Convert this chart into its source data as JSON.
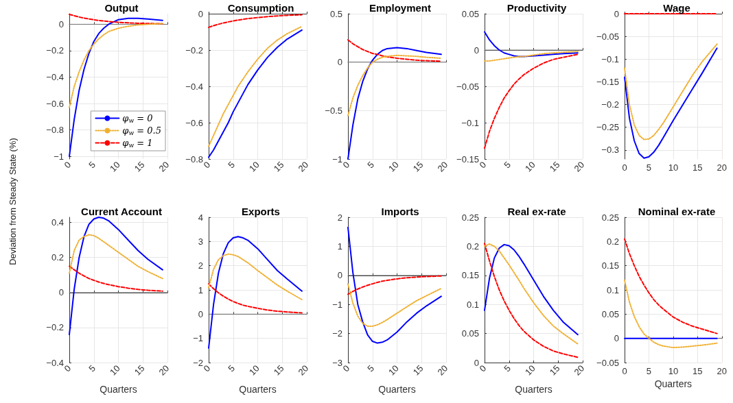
{
  "chart_data": [
    {
      "type": "line",
      "title": "Output",
      "ylabel": "Deviation from Steady State (%)",
      "x": [
        0,
        1,
        2,
        3,
        4,
        5,
        6,
        7,
        8,
        10,
        12,
        14,
        16,
        19
      ],
      "xlim": [
        0,
        20
      ],
      "xticks": [
        0,
        5,
        10,
        15,
        20
      ],
      "ylim": [
        -1.02,
        0.08
      ],
      "yticks": [
        -1,
        -0.8,
        -0.6,
        -0.4,
        -0.2,
        0
      ],
      "grid": true,
      "legend": "bottom right",
      "ref_lines": [
        {
          "axis": "y",
          "value": 0,
          "color": "#808080"
        }
      ],
      "series": [
        {
          "name": "φ$_{w}$ = 0",
          "color": "#0000ff",
          "line_style": "solid",
          "values": [
            -1.0,
            -0.72,
            -0.5,
            -0.34,
            -0.22,
            -0.13,
            -0.07,
            -0.03,
            0.0,
            0.035,
            0.045,
            0.045,
            0.04,
            0.03
          ]
        },
        {
          "name": "φ$_{w}$ = 0.5",
          "color": "#f0b030",
          "line_style": "dotted",
          "values": [
            -0.63,
            -0.47,
            -0.36,
            -0.27,
            -0.2,
            -0.15,
            -0.11,
            -0.08,
            -0.055,
            -0.03,
            -0.015,
            -0.005,
            0.0,
            0.005
          ]
        },
        {
          "name": "φ$_{w}$ = 1",
          "color": "#ff0000",
          "line_style": "dashed",
          "values": [
            0.075,
            0.065,
            0.055,
            0.047,
            0.04,
            0.034,
            0.029,
            0.025,
            0.021,
            0.015,
            0.011,
            0.008,
            0.006,
            0.004
          ]
        }
      ]
    },
    {
      "type": "line",
      "title": "Consumption",
      "x": [
        0,
        1,
        2,
        3,
        4,
        5,
        6,
        7,
        8,
        10,
        12,
        14,
        16,
        19
      ],
      "xlim": [
        0,
        20
      ],
      "xticks": [
        0,
        5,
        10,
        15,
        20
      ],
      "ylim": [
        -0.8,
        0
      ],
      "yticks": [
        -0.8,
        -0.6,
        -0.4,
        -0.2,
        0
      ],
      "grid": true,
      "series": [
        {
          "color": "#0000ff",
          "line_style": "solid",
          "values": [
            -0.79,
            -0.75,
            -0.7,
            -0.65,
            -0.6,
            -0.54,
            -0.49,
            -0.44,
            -0.39,
            -0.31,
            -0.24,
            -0.185,
            -0.14,
            -0.09
          ]
        },
        {
          "color": "#f0b030",
          "line_style": "dotted",
          "values": [
            -0.73,
            -0.67,
            -0.61,
            -0.55,
            -0.5,
            -0.45,
            -0.4,
            -0.36,
            -0.32,
            -0.25,
            -0.19,
            -0.145,
            -0.11,
            -0.07
          ]
        },
        {
          "color": "#ff0000",
          "line_style": "dashed",
          "values": [
            -0.075,
            -0.066,
            -0.058,
            -0.051,
            -0.045,
            -0.04,
            -0.035,
            -0.031,
            -0.027,
            -0.021,
            -0.016,
            -0.012,
            -0.009,
            -0.006
          ]
        }
      ]
    },
    {
      "type": "line",
      "title": "Employment",
      "x": [
        0,
        1,
        2,
        3,
        4,
        5,
        6,
        7,
        8,
        10,
        12,
        14,
        16,
        19
      ],
      "xlim": [
        0,
        20
      ],
      "xticks": [
        0,
        5,
        10,
        15,
        20
      ],
      "ylim": [
        -1,
        0.5
      ],
      "yticks": [
        -1,
        -0.5,
        0,
        0.5
      ],
      "grid": true,
      "ref_lines": [
        {
          "axis": "y",
          "value": 0,
          "color": "#808080"
        }
      ],
      "series": [
        {
          "color": "#0000ff",
          "line_style": "solid",
          "values": [
            -1.0,
            -0.65,
            -0.38,
            -0.2,
            -0.07,
            0.02,
            0.08,
            0.12,
            0.14,
            0.15,
            0.14,
            0.12,
            0.1,
            0.08
          ]
        },
        {
          "color": "#f0b030",
          "line_style": "dotted",
          "values": [
            -0.55,
            -0.37,
            -0.24,
            -0.14,
            -0.06,
            0.0,
            0.03,
            0.05,
            0.06,
            0.07,
            0.065,
            0.06,
            0.05,
            0.04
          ]
        },
        {
          "color": "#ff0000",
          "line_style": "dashed",
          "values": [
            0.23,
            0.19,
            0.16,
            0.13,
            0.11,
            0.09,
            0.08,
            0.065,
            0.055,
            0.04,
            0.03,
            0.02,
            0.015,
            0.01
          ]
        }
      ]
    },
    {
      "type": "line",
      "title": "Productivity",
      "x": [
        0,
        1,
        2,
        3,
        4,
        5,
        6,
        7,
        8,
        10,
        12,
        14,
        16,
        19
      ],
      "xlim": [
        0,
        20
      ],
      "xticks": [
        0,
        5,
        10,
        15,
        20
      ],
      "ylim": [
        -0.15,
        0.05
      ],
      "yticks": [
        -0.15,
        -0.1,
        -0.05,
        0,
        0.05
      ],
      "grid": true,
      "ref_lines": [
        {
          "axis": "y",
          "value": 0,
          "color": "#808080"
        }
      ],
      "series": [
        {
          "color": "#0000ff",
          "line_style": "solid",
          "values": [
            0.025,
            0.014,
            0.006,
            0.0,
            -0.004,
            -0.006,
            -0.008,
            -0.009,
            -0.009,
            -0.008,
            -0.007,
            -0.006,
            -0.005,
            -0.004
          ]
        },
        {
          "color": "#f0b030",
          "line_style": "dotted",
          "values": [
            -0.015,
            -0.015,
            -0.014,
            -0.013,
            -0.012,
            -0.011,
            -0.01,
            -0.009,
            -0.009,
            -0.007,
            -0.005,
            -0.004,
            -0.003,
            -0.002
          ]
        },
        {
          "color": "#ff0000",
          "line_style": "dashed",
          "values": [
            -0.135,
            -0.112,
            -0.094,
            -0.079,
            -0.066,
            -0.056,
            -0.047,
            -0.04,
            -0.034,
            -0.025,
            -0.018,
            -0.013,
            -0.01,
            -0.006
          ]
        }
      ]
    },
    {
      "type": "line",
      "title": "Wage",
      "x": [
        0,
        1,
        2,
        3,
        4,
        5,
        6,
        7,
        8,
        10,
        12,
        14,
        16,
        19
      ],
      "xlim": [
        0,
        20
      ],
      "xticks": [
        0,
        5,
        10,
        15,
        20
      ],
      "ylim": [
        -0.32,
        0
      ],
      "yticks": [
        -0.3,
        -0.25,
        -0.2,
        -0.15,
        -0.1,
        -0.05,
        0
      ],
      "grid": true,
      "series": [
        {
          "color": "#0000ff",
          "line_style": "solid",
          "values": [
            -0.14,
            -0.23,
            -0.28,
            -0.308,
            -0.318,
            -0.315,
            -0.305,
            -0.29,
            -0.272,
            -0.235,
            -0.2,
            -0.165,
            -0.13,
            -0.076
          ]
        },
        {
          "color": "#f0b030",
          "line_style": "dotted",
          "values": [
            -0.12,
            -0.2,
            -0.245,
            -0.268,
            -0.277,
            -0.276,
            -0.268,
            -0.255,
            -0.24,
            -0.205,
            -0.17,
            -0.135,
            -0.105,
            -0.067
          ]
        },
        {
          "color": "#ff0000",
          "line_style": "dashed",
          "values": [
            0,
            0,
            0,
            0,
            0,
            0,
            0,
            0,
            0,
            0,
            0,
            0,
            0,
            0
          ]
        }
      ]
    },
    {
      "type": "line",
      "title": "Current Account",
      "xlabel": "Quarters",
      "x": [
        0,
        1,
        2,
        3,
        4,
        5,
        6,
        7,
        8,
        10,
        12,
        14,
        16,
        19
      ],
      "xlim": [
        0,
        20
      ],
      "xticks": [
        0,
        5,
        10,
        15,
        20
      ],
      "ylim": [
        -0.4,
        0.43
      ],
      "yticks": [
        -0.4,
        -0.2,
        0,
        0.2,
        0.4
      ],
      "grid": true,
      "ref_lines": [
        {
          "axis": "y",
          "value": 0,
          "color": "#808080"
        }
      ],
      "series": [
        {
          "color": "#0000ff",
          "line_style": "solid",
          "values": [
            -0.24,
            0.02,
            0.2,
            0.32,
            0.39,
            0.42,
            0.43,
            0.425,
            0.41,
            0.36,
            0.3,
            0.24,
            0.19,
            0.13
          ]
        },
        {
          "color": "#f0b030",
          "line_style": "dotted",
          "values": [
            0.11,
            0.24,
            0.3,
            0.32,
            0.33,
            0.325,
            0.31,
            0.29,
            0.27,
            0.23,
            0.19,
            0.15,
            0.12,
            0.08
          ]
        },
        {
          "color": "#ff0000",
          "line_style": "dashed",
          "values": [
            0.15,
            0.13,
            0.11,
            0.095,
            0.08,
            0.07,
            0.06,
            0.052,
            0.045,
            0.034,
            0.025,
            0.018,
            0.013,
            0.008
          ]
        }
      ]
    },
    {
      "type": "line",
      "title": "Exports",
      "xlabel": "Quarters",
      "x": [
        0,
        1,
        2,
        3,
        4,
        5,
        6,
        7,
        8,
        10,
        12,
        14,
        16,
        19
      ],
      "xlim": [
        0,
        20
      ],
      "xticks": [
        0,
        5,
        10,
        15,
        20
      ],
      "ylim": [
        -2,
        4
      ],
      "yticks": [
        -2,
        -1,
        0,
        1,
        2,
        3,
        4
      ],
      "grid": true,
      "ref_lines": [
        {
          "axis": "y",
          "value": 0,
          "color": "#808080"
        }
      ],
      "series": [
        {
          "color": "#0000ff",
          "line_style": "solid",
          "values": [
            -1.4,
            0.4,
            1.7,
            2.5,
            2.95,
            3.15,
            3.2,
            3.15,
            3.05,
            2.7,
            2.25,
            1.8,
            1.45,
            0.95
          ]
        },
        {
          "color": "#f0b030",
          "line_style": "dotted",
          "values": [
            1.1,
            1.85,
            2.25,
            2.42,
            2.48,
            2.45,
            2.38,
            2.25,
            2.12,
            1.8,
            1.5,
            1.2,
            0.95,
            0.6
          ]
        },
        {
          "color": "#ff0000",
          "line_style": "dashed",
          "values": [
            1.25,
            1.05,
            0.88,
            0.74,
            0.62,
            0.52,
            0.44,
            0.37,
            0.32,
            0.24,
            0.17,
            0.12,
            0.09,
            0.05
          ]
        }
      ]
    },
    {
      "type": "line",
      "title": "Imports",
      "xlabel": "Quarters",
      "x": [
        0,
        1,
        2,
        3,
        4,
        5,
        6,
        7,
        8,
        10,
        12,
        14,
        16,
        19
      ],
      "xlim": [
        0,
        20
      ],
      "xticks": [
        0,
        5,
        10,
        15,
        20
      ],
      "ylim": [
        -3,
        2
      ],
      "yticks": [
        -3,
        -2,
        -1,
        0,
        1,
        2
      ],
      "grid": true,
      "ref_lines": [
        {
          "axis": "y",
          "value": 0,
          "color": "#808080"
        }
      ],
      "series": [
        {
          "color": "#0000ff",
          "line_style": "solid",
          "values": [
            1.65,
            0.1,
            -1.0,
            -1.6,
            -2.05,
            -2.27,
            -2.33,
            -2.3,
            -2.22,
            -1.95,
            -1.6,
            -1.3,
            -1.05,
            -0.72
          ]
        },
        {
          "color": "#f0b030",
          "line_style": "dotted",
          "values": [
            -0.3,
            -0.95,
            -1.4,
            -1.65,
            -1.75,
            -1.75,
            -1.7,
            -1.62,
            -1.52,
            -1.3,
            -1.08,
            -0.87,
            -0.7,
            -0.45
          ]
        },
        {
          "color": "#ff0000",
          "line_style": "dashed",
          "values": [
            -0.65,
            -0.55,
            -0.47,
            -0.4,
            -0.34,
            -0.29,
            -0.24,
            -0.2,
            -0.17,
            -0.12,
            -0.08,
            -0.06,
            -0.04,
            -0.02
          ]
        }
      ]
    },
    {
      "type": "line",
      "title": "Real ex-rate",
      "xlabel": "Quarters",
      "x": [
        0,
        1,
        2,
        3,
        4,
        5,
        6,
        7,
        8,
        10,
        12,
        14,
        16,
        19
      ],
      "xlim": [
        0,
        20
      ],
      "xticks": [
        0,
        5,
        10,
        15,
        20
      ],
      "ylim": [
        0,
        0.25
      ],
      "yticks": [
        0,
        0.05,
        0.1,
        0.15,
        0.2,
        0.25
      ],
      "grid": true,
      "series": [
        {
          "color": "#0000ff",
          "line_style": "solid",
          "values": [
            0.09,
            0.145,
            0.18,
            0.197,
            0.203,
            0.201,
            0.194,
            0.183,
            0.17,
            0.142,
            0.114,
            0.09,
            0.07,
            0.048
          ]
        },
        {
          "color": "#f0b030",
          "line_style": "dotted",
          "values": [
            0.2,
            0.204,
            0.2,
            0.192,
            0.18,
            0.168,
            0.155,
            0.142,
            0.128,
            0.103,
            0.081,
            0.063,
            0.05,
            0.032
          ]
        },
        {
          "color": "#ff0000",
          "line_style": "dashed",
          "values": [
            0.205,
            0.175,
            0.148,
            0.125,
            0.106,
            0.09,
            0.076,
            0.064,
            0.054,
            0.039,
            0.028,
            0.02,
            0.015,
            0.009
          ]
        }
      ]
    },
    {
      "type": "line",
      "title": "Nominal ex-rate",
      "xlabel": "Quarters",
      "x": [
        0,
        1,
        2,
        3,
        4,
        5,
        6,
        7,
        8,
        10,
        12,
        14,
        16,
        19
      ],
      "xlim": [
        0,
        20
      ],
      "xticks": [
        0,
        5,
        10,
        15,
        20
      ],
      "ylim": [
        -0.05,
        0.25
      ],
      "yticks": [
        -0.05,
        0,
        0.05,
        0.1,
        0.15,
        0.2,
        0.25
      ],
      "grid": true,
      "ref_lines": [
        {
          "axis": "y",
          "value": 0,
          "color": "#808080"
        }
      ],
      "series": [
        {
          "color": "#0000ff",
          "line_style": "solid",
          "values": [
            0,
            0,
            0,
            0,
            0,
            0,
            0,
            0,
            0,
            0,
            0,
            0,
            0,
            0
          ]
        },
        {
          "color": "#f0b030",
          "line_style": "dotted",
          "values": [
            0.12,
            0.075,
            0.045,
            0.024,
            0.009,
            0.0,
            -0.008,
            -0.013,
            -0.016,
            -0.019,
            -0.018,
            -0.016,
            -0.014,
            -0.01
          ]
        },
        {
          "color": "#ff0000",
          "line_style": "dashed",
          "values": [
            0.205,
            0.175,
            0.15,
            0.128,
            0.11,
            0.094,
            0.08,
            0.069,
            0.06,
            0.044,
            0.033,
            0.025,
            0.019,
            0.01
          ]
        }
      ]
    }
  ]
}
